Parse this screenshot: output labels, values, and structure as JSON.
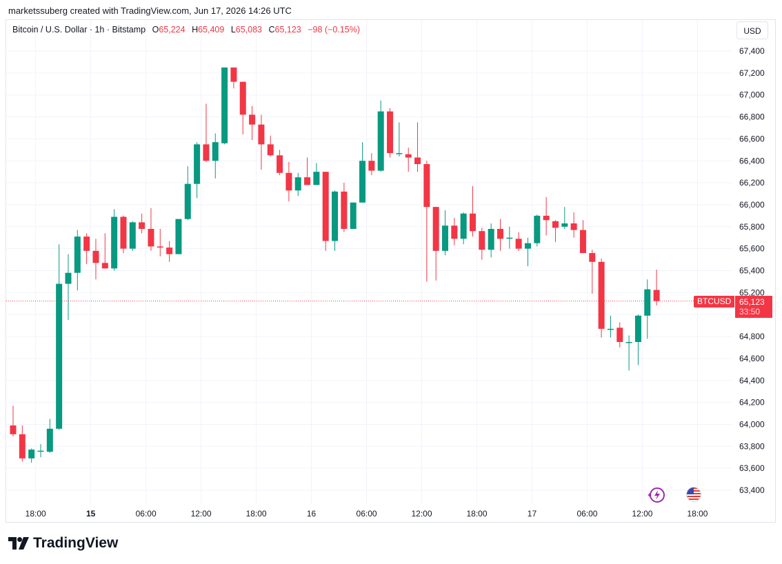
{
  "header": {
    "credit": "marketssuberg created with TradingView.com, Jun 17, 2026 14:26 UTC"
  },
  "legend": {
    "symbol": "Bitcoin / U.S. Dollar · 1h · Bitstamp",
    "o_label": "O",
    "o_value": "65,224",
    "h_label": "H",
    "h_value": "65,409",
    "l_label": "L",
    "l_value": "65,083",
    "c_label": "C",
    "c_value": "65,123",
    "change": "−98 (−0.15%)"
  },
  "currency": "USD",
  "price_tag": {
    "symbol": "BTCUSD",
    "price": "65,123",
    "countdown": "33:50"
  },
  "brand": "TradingView",
  "icons": {
    "events": "lightning-event-icon",
    "flag": "us-flag-icon"
  },
  "colors": {
    "up": "#089981",
    "down": "#f23645",
    "grid": "#f0f3fa",
    "axis_text": "#131722"
  },
  "chart_data": {
    "type": "candlestick",
    "title": "Bitcoin / U.S. Dollar · 1h · Bitstamp",
    "ylim": [
      63300,
      67500
    ],
    "y_ticks": [
      63400,
      63600,
      63800,
      64000,
      64200,
      64400,
      64600,
      64800,
      65000,
      65200,
      65400,
      65600,
      65800,
      66000,
      66200,
      66400,
      66600,
      66800,
      67000,
      67200,
      67400
    ],
    "y_tick_labels": [
      "63,400",
      "63,600",
      "63,800",
      "64,000",
      "64,200",
      "64,400",
      "64,600",
      "64,800",
      "65,000",
      "65,200",
      "65,400",
      "65,600",
      "65,800",
      "66,000",
      "66,200",
      "66,400",
      "66,600",
      "66,800",
      "67,000",
      "67,200",
      "67,400"
    ],
    "x_ticks": [
      {
        "label": "18:00",
        "index": 2
      },
      {
        "label": "15",
        "index": 8,
        "bold": true
      },
      {
        "label": "06:00",
        "index": 14
      },
      {
        "label": "12:00",
        "index": 20
      },
      {
        "label": "18:00",
        "index": 26
      },
      {
        "label": "16",
        "index": 32
      },
      {
        "label": "06:00",
        "index": 38
      },
      {
        "label": "12:00",
        "index": 44
      },
      {
        "label": "18:00",
        "index": 50
      },
      {
        "label": "17",
        "index": 56
      },
      {
        "label": "06:00",
        "index": 62
      },
      {
        "label": "12:00",
        "index": 68
      },
      {
        "label": "18:00",
        "index": 74
      }
    ],
    "last_price": 65123,
    "candles": [
      {
        "o": 63990,
        "h": 64170,
        "l": 63890,
        "c": 63910
      },
      {
        "o": 63910,
        "h": 63990,
        "l": 63660,
        "c": 63690
      },
      {
        "o": 63690,
        "h": 63780,
        "l": 63650,
        "c": 63770
      },
      {
        "o": 63760,
        "h": 63820,
        "l": 63700,
        "c": 63760
      },
      {
        "o": 63750,
        "h": 64050,
        "l": 63740,
        "c": 63960
      },
      {
        "o": 63960,
        "h": 65640,
        "l": 63950,
        "c": 65280
      },
      {
        "o": 65280,
        "h": 65550,
        "l": 64950,
        "c": 65380
      },
      {
        "o": 65380,
        "h": 65770,
        "l": 65220,
        "c": 65710
      },
      {
        "o": 65710,
        "h": 65740,
        "l": 65460,
        "c": 65580
      },
      {
        "o": 65580,
        "h": 65690,
        "l": 65320,
        "c": 65470
      },
      {
        "o": 65470,
        "h": 65740,
        "l": 65420,
        "c": 65420
      },
      {
        "o": 65420,
        "h": 65960,
        "l": 65400,
        "c": 65890
      },
      {
        "o": 65890,
        "h": 65900,
        "l": 65560,
        "c": 65600
      },
      {
        "o": 65600,
        "h": 65850,
        "l": 65580,
        "c": 65840
      },
      {
        "o": 65840,
        "h": 65920,
        "l": 65740,
        "c": 65780
      },
      {
        "o": 65780,
        "h": 65970,
        "l": 65580,
        "c": 65620
      },
      {
        "o": 65620,
        "h": 65780,
        "l": 65530,
        "c": 65610
      },
      {
        "o": 65610,
        "h": 65670,
        "l": 65480,
        "c": 65550
      },
      {
        "o": 65550,
        "h": 65870,
        "l": 65550,
        "c": 65870
      },
      {
        "o": 65870,
        "h": 66350,
        "l": 65860,
        "c": 66190
      },
      {
        "o": 66190,
        "h": 66570,
        "l": 66060,
        "c": 66550
      },
      {
        "o": 66550,
        "h": 66920,
        "l": 66390,
        "c": 66400
      },
      {
        "o": 66400,
        "h": 66650,
        "l": 66240,
        "c": 66570
      },
      {
        "o": 66560,
        "h": 67250,
        "l": 66550,
        "c": 67250
      },
      {
        "o": 67250,
        "h": 67250,
        "l": 67060,
        "c": 67120
      },
      {
        "o": 67120,
        "h": 67120,
        "l": 66640,
        "c": 66820
      },
      {
        "o": 66820,
        "h": 66900,
        "l": 66590,
        "c": 66730
      },
      {
        "o": 66730,
        "h": 66820,
        "l": 66320,
        "c": 66550
      },
      {
        "o": 66550,
        "h": 66630,
        "l": 66440,
        "c": 66450
      },
      {
        "o": 66450,
        "h": 66500,
        "l": 66270,
        "c": 66290
      },
      {
        "o": 66290,
        "h": 66390,
        "l": 66030,
        "c": 66130
      },
      {
        "o": 66130,
        "h": 66290,
        "l": 66080,
        "c": 66250
      },
      {
        "o": 66250,
        "h": 66430,
        "l": 66180,
        "c": 66180
      },
      {
        "o": 66180,
        "h": 66380,
        "l": 66180,
        "c": 66300
      },
      {
        "o": 66300,
        "h": 66300,
        "l": 65580,
        "c": 65670
      },
      {
        "o": 65670,
        "h": 66130,
        "l": 65580,
        "c": 66120
      },
      {
        "o": 66120,
        "h": 66200,
        "l": 65750,
        "c": 65780
      },
      {
        "o": 65780,
        "h": 66020,
        "l": 65780,
        "c": 66020
      },
      {
        "o": 66020,
        "h": 66570,
        "l": 66020,
        "c": 66400
      },
      {
        "o": 66400,
        "h": 66470,
        "l": 66270,
        "c": 66310
      },
      {
        "o": 66310,
        "h": 66950,
        "l": 66300,
        "c": 66850
      },
      {
        "o": 66850,
        "h": 66880,
        "l": 66430,
        "c": 66470
      },
      {
        "o": 66470,
        "h": 66750,
        "l": 66440,
        "c": 66470
      },
      {
        "o": 66460,
        "h": 66520,
        "l": 66300,
        "c": 66430
      },
      {
        "o": 66430,
        "h": 66750,
        "l": 66300,
        "c": 66370
      },
      {
        "o": 66370,
        "h": 66400,
        "l": 65300,
        "c": 65980
      },
      {
        "o": 65980,
        "h": 65980,
        "l": 65310,
        "c": 65580
      },
      {
        "o": 65580,
        "h": 65950,
        "l": 65540,
        "c": 65810
      },
      {
        "o": 65810,
        "h": 65880,
        "l": 65630,
        "c": 65690
      },
      {
        "o": 65690,
        "h": 65930,
        "l": 65640,
        "c": 65920
      },
      {
        "o": 65920,
        "h": 66170,
        "l": 65710,
        "c": 65760
      },
      {
        "o": 65760,
        "h": 65790,
        "l": 65500,
        "c": 65590
      },
      {
        "o": 65590,
        "h": 65830,
        "l": 65520,
        "c": 65780
      },
      {
        "o": 65780,
        "h": 65870,
        "l": 65580,
        "c": 65690
      },
      {
        "o": 65700,
        "h": 65800,
        "l": 65600,
        "c": 65700
      },
      {
        "o": 65690,
        "h": 65750,
        "l": 65580,
        "c": 65600
      },
      {
        "o": 65600,
        "h": 65700,
        "l": 65440,
        "c": 65650
      },
      {
        "o": 65650,
        "h": 65910,
        "l": 65620,
        "c": 65900
      },
      {
        "o": 65900,
        "h": 66070,
        "l": 65720,
        "c": 65860
      },
      {
        "o": 65850,
        "h": 65860,
        "l": 65660,
        "c": 65790
      },
      {
        "o": 65800,
        "h": 65980,
        "l": 65780,
        "c": 65830
      },
      {
        "o": 65830,
        "h": 65930,
        "l": 65700,
        "c": 65770
      },
      {
        "o": 65770,
        "h": 65860,
        "l": 65560,
        "c": 65560
      },
      {
        "o": 65560,
        "h": 65590,
        "l": 65190,
        "c": 65480
      },
      {
        "o": 65480,
        "h": 65510,
        "l": 64790,
        "c": 64870
      },
      {
        "o": 64870,
        "h": 64990,
        "l": 64790,
        "c": 64870
      },
      {
        "o": 64880,
        "h": 64930,
        "l": 64700,
        "c": 64750
      },
      {
        "o": 64750,
        "h": 64810,
        "l": 64490,
        "c": 64750
      },
      {
        "o": 64750,
        "h": 65000,
        "l": 64540,
        "c": 64990
      },
      {
        "o": 64990,
        "h": 65320,
        "l": 64780,
        "c": 65230
      },
      {
        "o": 65224,
        "h": 65409,
        "l": 65083,
        "c": 65123
      }
    ]
  }
}
